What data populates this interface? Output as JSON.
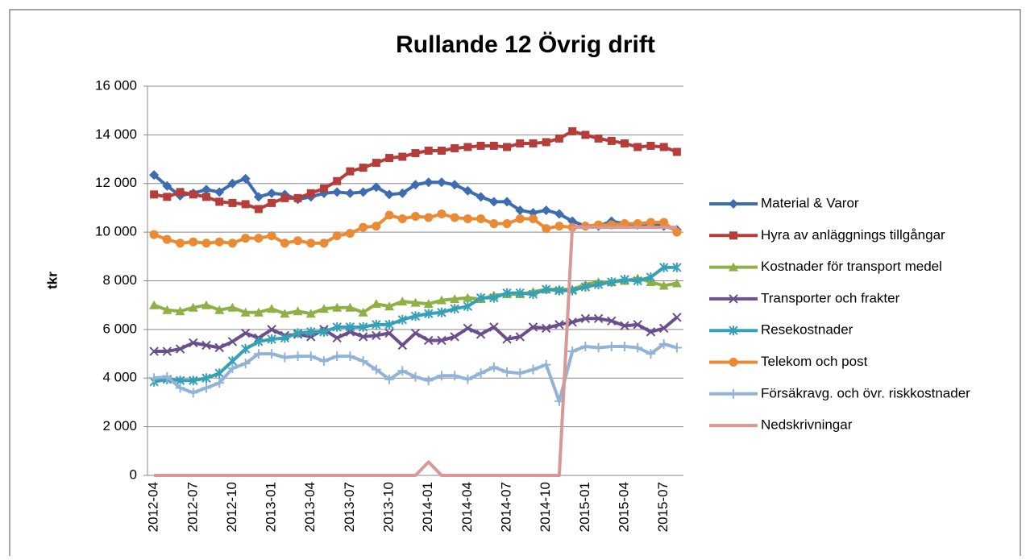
{
  "chart_data": {
    "type": "line",
    "title": "Rullande 12 Övrig drift",
    "ylabel": "tkr",
    "categories": [
      "2012-04",
      null,
      null,
      "2012-07",
      null,
      null,
      "2012-10",
      null,
      null,
      "2013-01",
      null,
      null,
      "2013-04",
      null,
      null,
      "2013-07",
      null,
      null,
      "2013-10",
      null,
      null,
      "2014-01",
      null,
      null,
      "2014-04",
      null,
      null,
      "2014-07",
      null,
      null,
      "2014-10",
      null,
      null,
      "2015-01",
      null,
      null,
      "2015-04",
      null,
      null,
      "2015-07",
      null
    ],
    "ylim": [
      0,
      16000
    ],
    "yticks": [
      0,
      {
        "value": 2000,
        "label": "2 000"
      },
      {
        "value": 4000,
        "label": "4 000"
      },
      {
        "value": 6000,
        "label": "6 000"
      },
      {
        "value": 8000,
        "label": "8 000"
      },
      {
        "value": 10000,
        "label": "10 000"
      },
      {
        "value": 12000,
        "label": "12 000"
      },
      {
        "value": 14000,
        "label": "14 000"
      },
      {
        "value": 16000,
        "label": "16 000"
      }
    ],
    "grid": true,
    "legend": "right",
    "series": [
      {
        "name": "Material & Varor",
        "color": "#3d6db0",
        "marker": "diamond",
        "values": [
          12350,
          11900,
          11500,
          11600,
          11750,
          11650,
          12000,
          12200,
          11450,
          11600,
          11550,
          11350,
          11450,
          11600,
          11650,
          11600,
          11650,
          11850,
          11550,
          11600,
          11950,
          12050,
          12050,
          11950,
          11700,
          11450,
          11250,
          11250,
          10900,
          10800,
          10900,
          10750,
          10450,
          10250,
          10250,
          10450,
          10350,
          10300,
          10350,
          10250,
          10100
        ]
      },
      {
        "name": "Hyra av anläggnings tillgångar",
        "color": "#b53e3a",
        "marker": "square",
        "values": [
          11550,
          11450,
          11650,
          11550,
          11450,
          11250,
          11200,
          11150,
          10950,
          11200,
          11400,
          11400,
          11600,
          11800,
          12100,
          12500,
          12650,
          12850,
          13050,
          13100,
          13250,
          13350,
          13350,
          13450,
          13500,
          13550,
          13550,
          13500,
          13650,
          13650,
          13700,
          13850,
          14150,
          14000,
          13850,
          13750,
          13650,
          13500,
          13550,
          13500,
          13300
        ]
      },
      {
        "name": "Kostnader för transport medel",
        "color": "#8fb045",
        "marker": "triangle",
        "values": [
          7000,
          6800,
          6750,
          6900,
          7000,
          6800,
          6900,
          6700,
          6700,
          6850,
          6650,
          6750,
          6650,
          6850,
          6900,
          6900,
          6700,
          7050,
          6950,
          7150,
          7100,
          7050,
          7200,
          7250,
          7300,
          7250,
          7400,
          7450,
          7450,
          7550,
          7650,
          7650,
          7650,
          7850,
          7950,
          7950,
          8000,
          8100,
          7950,
          7800,
          7900
        ]
      },
      {
        "name": "Transporter och frakter",
        "color": "#6b4e8c",
        "marker": "x",
        "values": [
          5100,
          5100,
          5200,
          5450,
          5350,
          5250,
          5500,
          5850,
          5650,
          6000,
          5750,
          5800,
          5700,
          6000,
          5650,
          5900,
          5700,
          5750,
          5850,
          5350,
          5850,
          5550,
          5550,
          5700,
          6050,
          5800,
          6100,
          5600,
          5700,
          6100,
          6050,
          6200,
          6300,
          6450,
          6450,
          6350,
          6150,
          6200,
          5900,
          6050,
          6500
        ]
      },
      {
        "name": "Resekostnader",
        "color": "#36a0b6",
        "marker": "star",
        "values": [
          3850,
          3950,
          3900,
          3900,
          4000,
          4200,
          4700,
          5200,
          5500,
          5600,
          5650,
          5850,
          5900,
          5900,
          6100,
          6100,
          6100,
          6200,
          6200,
          6400,
          6550,
          6650,
          6700,
          6850,
          6950,
          7300,
          7300,
          7500,
          7500,
          7450,
          7650,
          7600,
          7600,
          7750,
          7850,
          7950,
          8050,
          8000,
          8150,
          8550,
          8550
        ]
      },
      {
        "name": "Telekom och post",
        "color": "#eb8a35",
        "marker": "circle",
        "values": [
          9900,
          9700,
          9550,
          9600,
          9550,
          9600,
          9550,
          9750,
          9750,
          9850,
          9550,
          9650,
          9550,
          9550,
          9850,
          9950,
          10200,
          10250,
          10700,
          10550,
          10650,
          10600,
          10750,
          10600,
          10550,
          10550,
          10350,
          10350,
          10550,
          10550,
          10150,
          10250,
          10200,
          10250,
          10300,
          10300,
          10350,
          10350,
          10400,
          10400,
          10000
        ]
      },
      {
        "name": "Försäkravg.  och övr. riskkostnader",
        "color": "#93b2d8",
        "marker": "plus",
        "values": [
          4000,
          4050,
          3600,
          3400,
          3600,
          3800,
          4400,
          4600,
          5000,
          5000,
          4850,
          4900,
          4900,
          4700,
          4900,
          4900,
          4700,
          4350,
          3950,
          4300,
          4050,
          3900,
          4100,
          4100,
          3950,
          4200,
          4450,
          4250,
          4200,
          4350,
          4550,
          3050,
          5100,
          5300,
          5250,
          5300,
          5300,
          5250,
          5000,
          5400,
          5250
        ]
      },
      {
        "name": "Nedskrivningar",
        "color": "#d99896",
        "marker": "none",
        "values": [
          0,
          0,
          0,
          0,
          0,
          0,
          0,
          0,
          0,
          0,
          0,
          0,
          0,
          0,
          0,
          0,
          0,
          0,
          0,
          0,
          0,
          550,
          0,
          0,
          0,
          0,
          0,
          0,
          0,
          0,
          0,
          0,
          10200,
          10200,
          10200,
          10200,
          10200,
          10200,
          10200,
          10200,
          10200
        ]
      }
    ]
  }
}
